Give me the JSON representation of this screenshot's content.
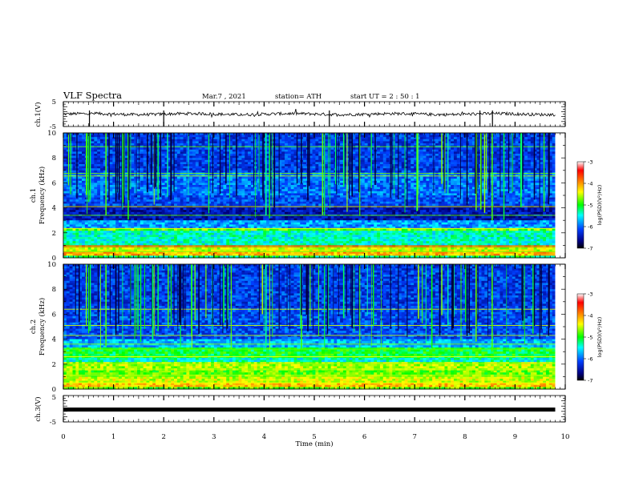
{
  "header": {
    "title": "VLF Spectra",
    "date": "Mar.7 , 2021",
    "station": "station= ATH",
    "start_ut": "start  UT =   2 : 50 : 1"
  },
  "colorbar": {
    "label": "log(PSD)(V²/Hz)",
    "ticks": [
      "-3",
      "-4",
      "-5",
      "-6",
      "-7"
    ],
    "stops": [
      "#ffffff",
      "#ff0000",
      "#ffff00",
      "#00ff00",
      "#00ffff",
      "#0040ff",
      "#000080",
      "#000000"
    ]
  },
  "chart_data": [
    {
      "type": "line",
      "name": "ch1-waveform",
      "ylabel": "ch.1(V)",
      "ylim": [
        -5,
        5
      ],
      "yticks": [
        "5",
        "-5"
      ],
      "description_values": "noisy signal near 0 V across 0-9.8 min",
      "x_range": [
        0,
        9.8
      ]
    },
    {
      "type": "heatmap",
      "name": "ch1-spectrogram",
      "ylabel": "ch.1\nFrequency  (kHz)",
      "ylabel_line1": "ch.1",
      "ylabel_line2": "Frequency  (kHz)",
      "ylim": [
        0,
        10
      ],
      "yticks": [
        "0",
        "2",
        "4",
        "6",
        "8",
        "10"
      ],
      "x_range": [
        0,
        9.8
      ]
    },
    {
      "type": "heatmap",
      "name": "ch2-spectrogram",
      "ylabel_line1": "ch.2",
      "ylabel_line2": "Frequency  (kHz)",
      "ylim": [
        0,
        10
      ],
      "yticks": [
        "0",
        "2",
        "4",
        "6",
        "8",
        "10"
      ],
      "x_range": [
        0,
        9.8
      ]
    },
    {
      "type": "line",
      "name": "ch3-waveform",
      "ylabel": "ch.3(V)",
      "ylim": [
        -5,
        5
      ],
      "yticks": [
        "5",
        "-5"
      ],
      "x_range": [
        0,
        9.8
      ]
    }
  ],
  "xaxis": {
    "label": "Time  (min)",
    "ticks": [
      "0",
      "1",
      "2",
      "3",
      "4",
      "5",
      "6",
      "7",
      "8",
      "9",
      "10"
    ],
    "range": [
      0,
      10
    ]
  }
}
